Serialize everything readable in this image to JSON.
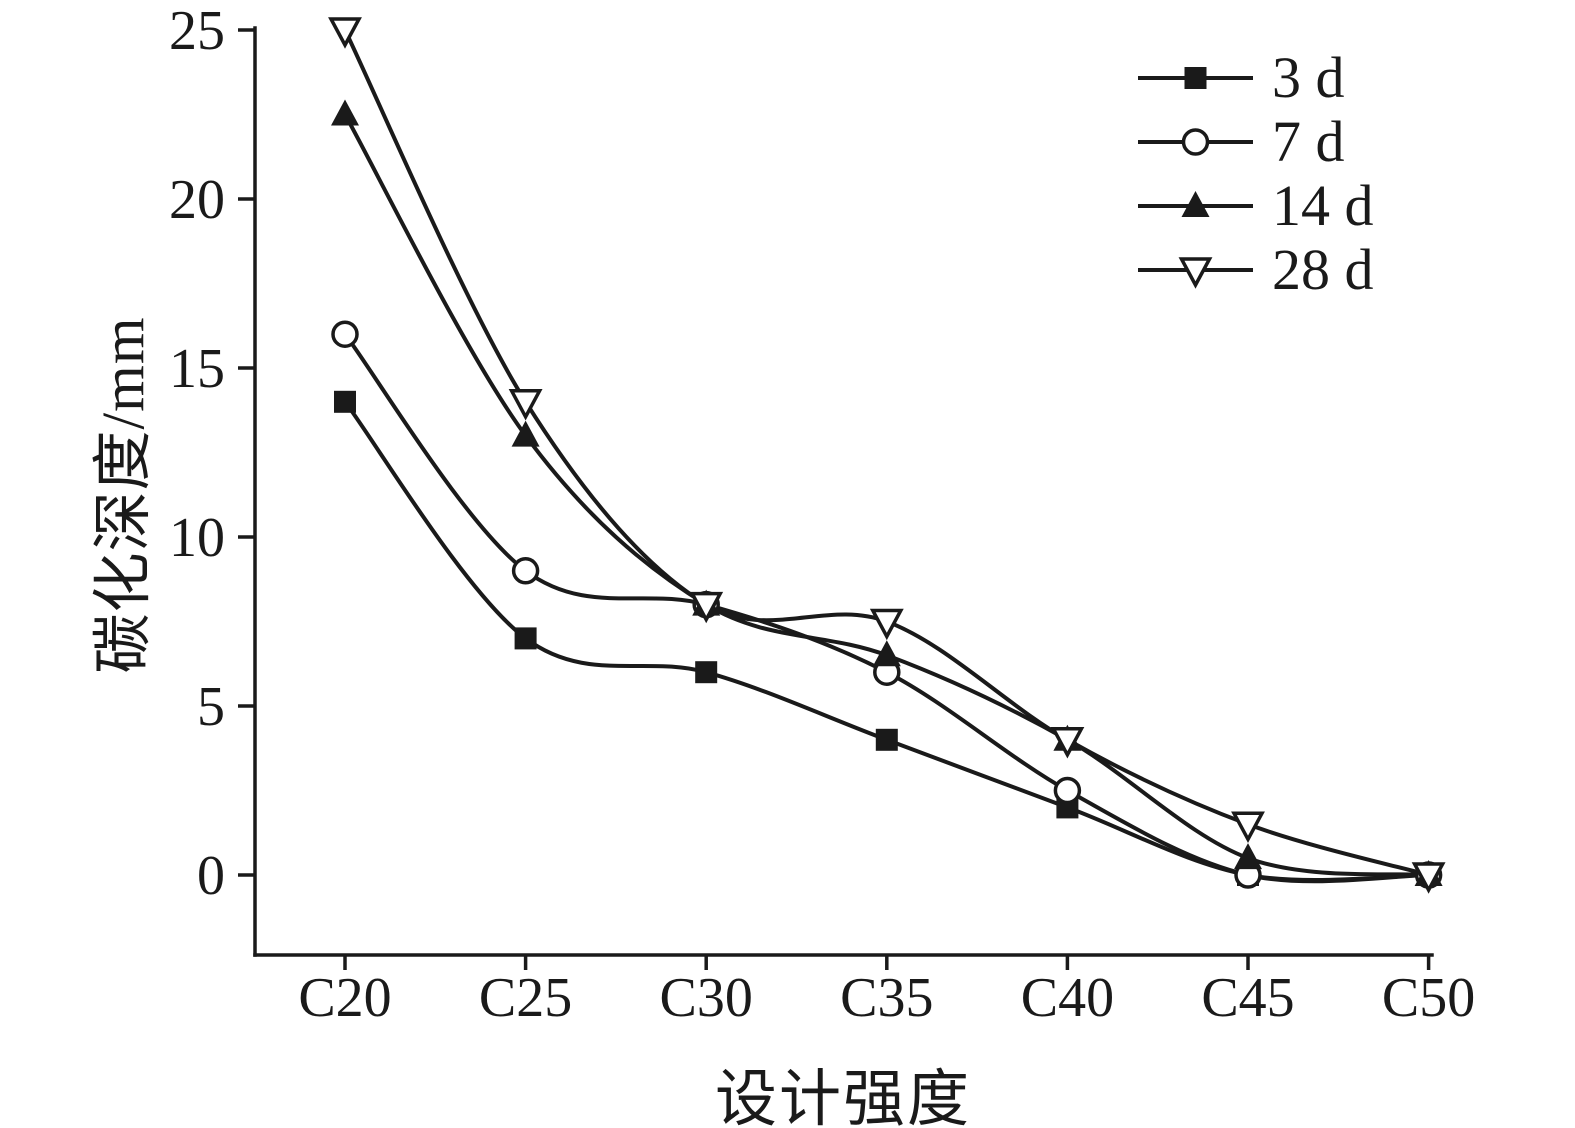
{
  "chart_data": {
    "type": "line",
    "title": "",
    "xlabel": "设计强度",
    "ylabel": "碳化深度/mm",
    "categories": [
      "C20",
      "C25",
      "C30",
      "C35",
      "C40",
      "C45",
      "C50"
    ],
    "yticks": [
      0,
      5,
      10,
      15,
      20,
      25
    ],
    "ylim": [
      0,
      25
    ],
    "grid": false,
    "legend_position": "top-right",
    "series": [
      {
        "name": "3 d",
        "marker": "square-filled",
        "values": [
          14,
          7,
          6,
          4,
          2,
          0,
          0
        ]
      },
      {
        "name": "7 d",
        "marker": "circle-open",
        "values": [
          16,
          9,
          8,
          6,
          2.5,
          0,
          0
        ]
      },
      {
        "name": "14 d",
        "marker": "triangle-up-filled",
        "values": [
          22.5,
          13,
          8,
          6.5,
          4,
          0.5,
          0
        ]
      },
      {
        "name": "28 d",
        "marker": "triangle-down-open",
        "values": [
          25,
          14,
          8,
          7.5,
          4,
          1.5,
          0
        ]
      }
    ]
  },
  "colors": {
    "ink": "#1a1a1a",
    "background": "#ffffff"
  }
}
